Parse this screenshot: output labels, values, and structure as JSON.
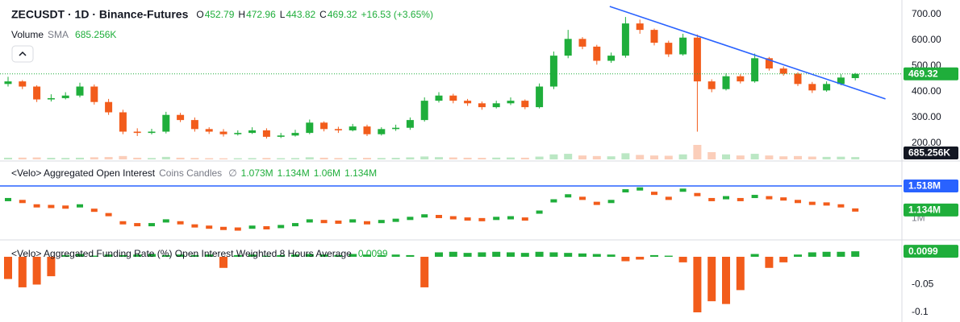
{
  "chart_data": [
    {
      "type": "candlestick",
      "title": "ZECUSDT · 1D · Binance-Futures",
      "ohlc_labels": [
        "O",
        "H",
        "L",
        "C"
      ],
      "change": "+16.53 (+3.65%)",
      "up_color": "#1fae3b",
      "down_color": "#f25c1b",
      "open": [
        430,
        440,
        420,
        370,
        375,
        385,
        420,
        360,
        320,
        245,
        240,
        245,
        310,
        290,
        255,
        245,
        235,
        240,
        250,
        225,
        230,
        240,
        280,
        255,
        250,
        265,
        235,
        255,
        260,
        290,
        365,
        385,
        365,
        355,
        340,
        355,
        365,
        340,
        420,
        540,
        605,
        575,
        520,
        540,
        665,
        640,
        590,
        545,
        610,
        440,
        410,
        460,
        440,
        530,
        490,
        470,
        430,
        405,
        430,
        452.79
      ],
      "high": [
        458,
        445,
        425,
        390,
        398,
        435,
        428,
        372,
        330,
        258,
        256,
        322,
        318,
        300,
        262,
        255,
        250,
        262,
        258,
        240,
        252,
        292,
        285,
        264,
        275,
        272,
        262,
        272,
        300,
        378,
        398,
        392,
        372,
        362,
        365,
        378,
        370,
        432,
        556,
        640,
        612,
        582,
        552,
        690,
        680,
        645,
        598,
        625,
        622,
        448,
        472,
        468,
        548,
        535,
        498,
        475,
        438,
        440,
        468,
        472.96
      ],
      "low": [
        420,
        410,
        360,
        362,
        370,
        378,
        350,
        310,
        235,
        228,
        234,
        238,
        282,
        245,
        236,
        226,
        230,
        236,
        218,
        220,
        226,
        235,
        246,
        240,
        246,
        228,
        230,
        248,
        252,
        284,
        358,
        355,
        345,
        330,
        335,
        348,
        332,
        335,
        410,
        530,
        565,
        505,
        512,
        532,
        625,
        580,
        535,
        540,
        245,
        398,
        405,
        432,
        435,
        482,
        462,
        422,
        395,
        400,
        425,
        443.82
      ],
      "close": [
        440,
        420,
        370,
        375,
        385,
        420,
        360,
        320,
        245,
        240,
        245,
        310,
        290,
        255,
        245,
        235,
        240,
        250,
        225,
        230,
        240,
        280,
        255,
        250,
        265,
        235,
        255,
        260,
        290,
        365,
        385,
        365,
        355,
        340,
        355,
        365,
        340,
        420,
        540,
        605,
        575,
        520,
        540,
        665,
        640,
        590,
        545,
        610,
        440,
        410,
        460,
        440,
        530,
        490,
        470,
        430,
        405,
        430,
        455,
        469.32
      ],
      "volume": {
        "name": "Volume",
        "indicator": "SMA",
        "sma_label": "685.256K",
        "values": [
          300,
          320,
          350,
          280,
          260,
          300,
          380,
          420,
          600,
          300,
          250,
          450,
          300,
          260,
          220,
          200,
          210,
          230,
          260,
          220,
          240,
          380,
          300,
          250,
          260,
          280,
          250,
          280,
          360,
          520,
          400,
          350,
          300,
          280,
          320,
          340,
          300,
          500,
          900,
          1000,
          700,
          600,
          550,
          1100,
          800,
          700,
          650,
          900,
          2600,
          1300,
          900,
          700,
          1000,
          700,
          550,
          600,
          500,
          450,
          480,
          420
        ]
      },
      "ylim": [
        131,
        756
      ],
      "yticks": [
        {
          "value": 700,
          "label": "700.00"
        },
        {
          "value": 600,
          "label": "600.00"
        },
        {
          "value": 500,
          "label": "500.00"
        },
        {
          "value": 400,
          "label": "400.00"
        },
        {
          "value": 300,
          "label": "300.00"
        },
        {
          "value": 200,
          "label": "200.00"
        }
      ],
      "trendline": {
        "color": "#2962ff",
        "from": [
          41.9,
          731
        ],
        "to": [
          61.1,
          372
        ]
      }
    },
    {
      "type": "line",
      "title": "<Velo> Aggregated Open Interest",
      "subtitle": "Coins Candles",
      "symbol": "∅",
      "header_values": [
        "1.073M",
        "1.134M",
        "1.06M",
        "1.134M"
      ],
      "up_color": "#1fae3b",
      "down_color": "#f25c1b",
      "values": [
        1.3,
        1.27,
        1.2,
        1.19,
        1.18,
        1.2,
        1.13,
        1.06,
        0.93,
        0.9,
        0.9,
        0.96,
        0.93,
        0.88,
        0.86,
        0.84,
        0.83,
        0.86,
        0.85,
        0.87,
        0.9,
        0.96,
        0.95,
        0.94,
        0.96,
        0.93,
        0.95,
        0.97,
        1.0,
        1.04,
        1.03,
        1.01,
        0.99,
        0.98,
        1.0,
        1.01,
        0.99,
        1.1,
        1.28,
        1.36,
        1.32,
        1.24,
        1.27,
        1.44,
        1.47,
        1.4,
        1.32,
        1.45,
        1.38,
        1.3,
        1.33,
        1.3,
        1.35,
        1.33,
        1.31,
        1.27,
        1.24,
        1.23,
        1.2,
        1.134
      ],
      "last_label": "1.134M",
      "ylim": [
        0.67,
        1.89
      ],
      "yticks": [
        {
          "value": 1,
          "label": "1M"
        }
      ],
      "reference_line": {
        "value": 1.518,
        "label": "1.518M",
        "color": "#2962ff"
      }
    },
    {
      "type": "bar",
      "title": "<Velo> Aggregated Funding Rate (%) Open Interest Weighted 8 Hours Average",
      "up_color": "#1fae3b",
      "down_color": "#f25c1b",
      "values": [
        -0.04,
        -0.055,
        -0.05,
        -0.035,
        0.003,
        0.005,
        0.002,
        0.004,
        0.003,
        0.004,
        0.005,
        0.003,
        0.004,
        0.003,
        0.004,
        -0.02,
        0.003,
        0.004,
        0.002,
        0.003,
        0.004,
        0.005,
        0.004,
        0.003,
        0.005,
        0.004,
        0.003,
        0.004,
        0.003,
        -0.055,
        0.008,
        0.009,
        0.007,
        0.008,
        0.009,
        0.008,
        0.007,
        0.009,
        0.008,
        0.007,
        0.006,
        0.005,
        0.004,
        -0.008,
        -0.005,
        0.003,
        0.002,
        -0.01,
        -0.1,
        -0.08,
        -0.085,
        -0.06,
        0.005,
        -0.02,
        -0.01,
        0.004,
        0.008,
        0.009,
        0.009,
        0.0099
      ],
      "ylim": [
        -0.1174,
        0.0304
      ],
      "yticks": [
        -0.05,
        -0.1
      ]
    }
  ]
}
